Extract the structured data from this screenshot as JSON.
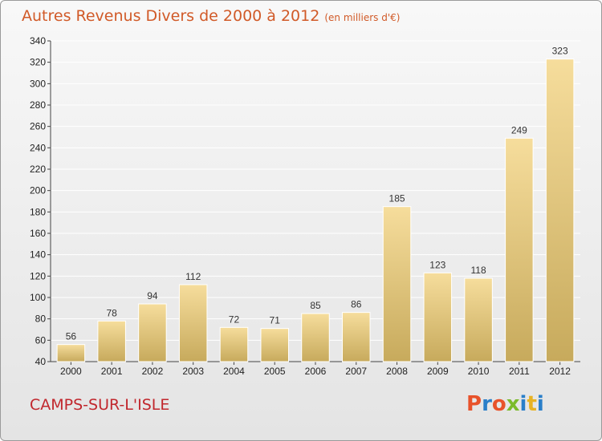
{
  "header": {
    "title": "Autres Revenus Divers de 2000 à 2012",
    "unit": "(en milliers d'€)"
  },
  "footer": {
    "city": "CAMPS-SUR-L'ISLE",
    "brand": "Proxiti"
  },
  "colors": {
    "title": "#d15a28",
    "city": "#c1272d",
    "bar_light": "#f6dd9c",
    "bar_dark": "#c7aa5c",
    "brand_letters": [
      "#e8522a",
      "#2a7fc9",
      "#e8522a",
      "#7cbb2b",
      "#2a7fc9",
      "#e8b323",
      "#2a7fc9"
    ]
  },
  "chart_data": {
    "type": "bar",
    "categories": [
      "2000",
      "2001",
      "2002",
      "2003",
      "2004",
      "2005",
      "2006",
      "2007",
      "2008",
      "2009",
      "2010",
      "2011",
      "2012"
    ],
    "values": [
      56,
      78,
      94,
      112,
      72,
      71,
      85,
      86,
      185,
      123,
      118,
      249,
      323
    ],
    "ylim": [
      40,
      340
    ],
    "yticks": [
      40,
      60,
      80,
      100,
      120,
      140,
      160,
      180,
      200,
      220,
      240,
      260,
      280,
      300,
      320,
      340
    ],
    "grid": true,
    "data_labels": true
  }
}
